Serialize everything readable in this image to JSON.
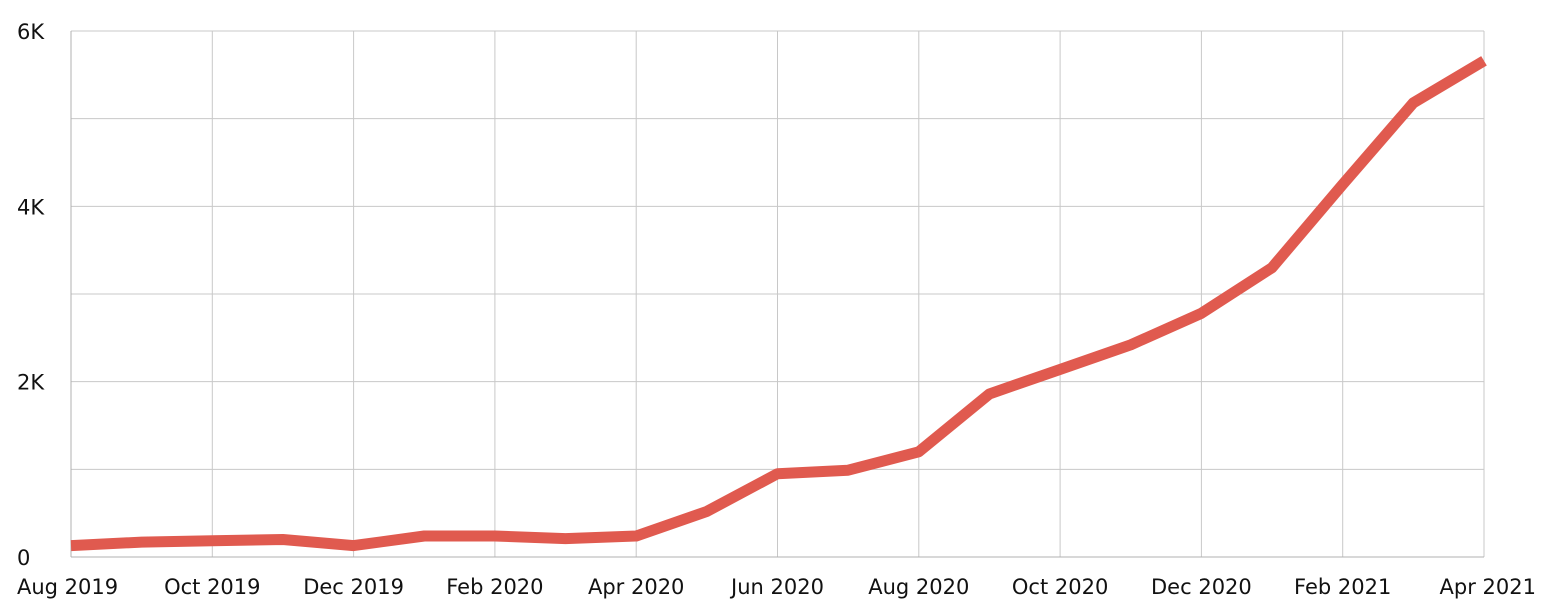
{
  "chart_data": {
    "type": "line",
    "title": "",
    "xlabel": "",
    "ylabel": "",
    "x": [
      "2019-08",
      "2019-09",
      "2019-10",
      "2019-11",
      "2019-12",
      "2020-01",
      "2020-02",
      "2020-03",
      "2020-04",
      "2020-05",
      "2020-06",
      "2020-07",
      "2020-08",
      "2020-09",
      "2020-10",
      "2020-11",
      "2020-12",
      "2021-01",
      "2021-02",
      "2021-03",
      "2021-04"
    ],
    "series": [
      {
        "values": [
          130,
          170,
          185,
          200,
          130,
          240,
          240,
          210,
          240,
          520,
          950,
          990,
          1200,
          1860,
          2140,
          2420,
          2780,
          3300,
          4250,
          5180,
          5660
        ]
      }
    ],
    "ylim": [
      0,
      6000
    ],
    "y_ticks": [
      {
        "value": 0,
        "label": "0"
      },
      {
        "value": 2000,
        "label": "2K"
      },
      {
        "value": 4000,
        "label": "4K"
      },
      {
        "value": 6000,
        "label": "6K"
      }
    ],
    "y_grid_values": [
      1000,
      2000,
      3000,
      4000,
      5000,
      6000
    ],
    "x_ticks": [
      {
        "index": 0,
        "label": "Aug 2019"
      },
      {
        "index": 2,
        "label": "Oct 2019"
      },
      {
        "index": 4,
        "label": "Dec 2019"
      },
      {
        "index": 6,
        "label": "Feb 2020"
      },
      {
        "index": 8,
        "label": "Apr 2020"
      },
      {
        "index": 10,
        "label": "Jun 2020"
      },
      {
        "index": 12,
        "label": "Aug 2020"
      },
      {
        "index": 14,
        "label": "Oct 2020"
      },
      {
        "index": 16,
        "label": "Dec 2020"
      },
      {
        "index": 18,
        "label": "Feb 2021"
      },
      {
        "index": 20,
        "label": "Apr 2021"
      }
    ],
    "grid": true,
    "legend": "none",
    "line_color": "#e05a4f"
  }
}
